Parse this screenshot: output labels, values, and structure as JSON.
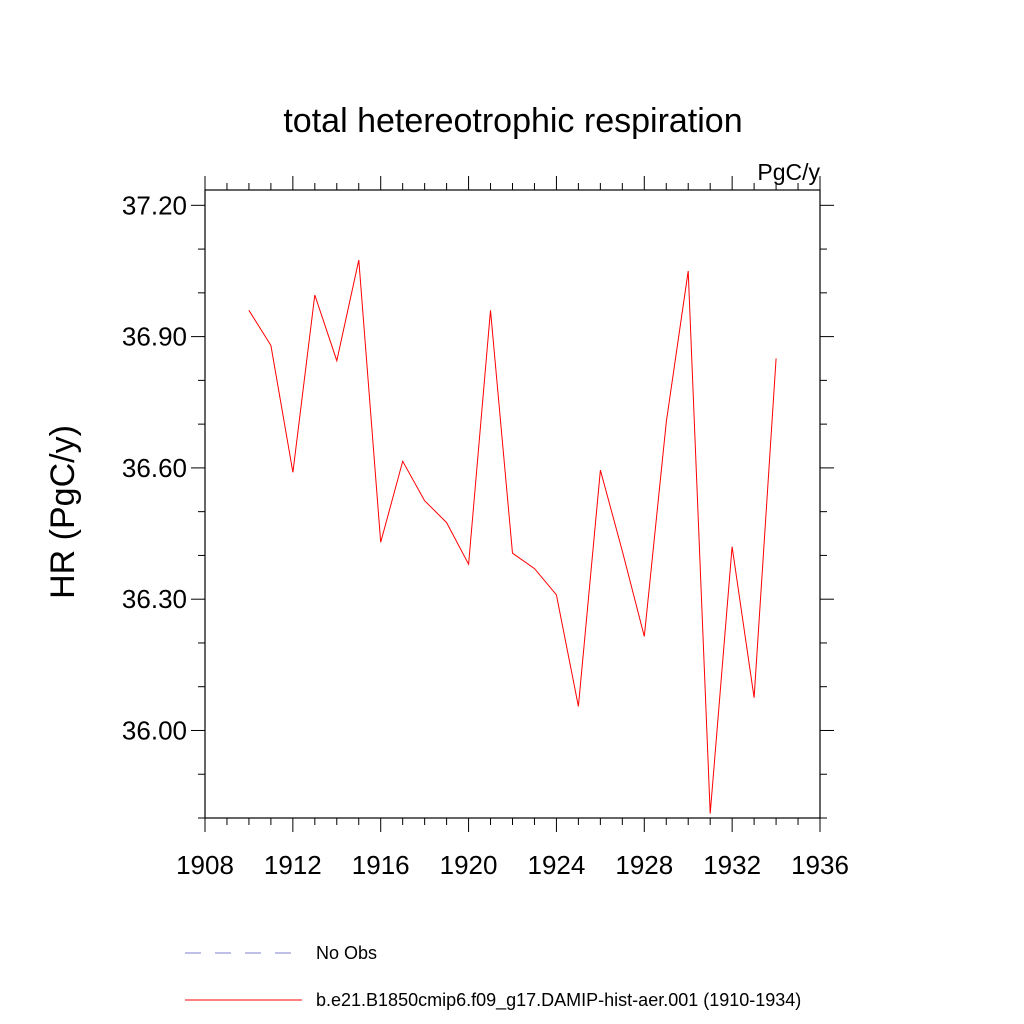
{
  "chart_data": {
    "type": "line",
    "title": "total hetereotrophic respiration",
    "units": "PgC/y",
    "ylabel": "HR  (PgC/y)",
    "xlabel": "",
    "xlim": [
      1908,
      1936
    ],
    "ylim": [
      35.8,
      37.235
    ],
    "xticks": [
      1908,
      1912,
      1916,
      1920,
      1924,
      1928,
      1932,
      1936
    ],
    "xtick_labels": [
      "1908",
      "1912",
      "1916",
      "1920",
      "1924",
      "1928",
      "1932",
      "1936"
    ],
    "yticks": [
      36.0,
      36.3,
      36.6,
      36.9,
      37.2
    ],
    "ytick_labels": [
      "36.00",
      "36.30",
      "36.60",
      "36.90",
      "37.20"
    ],
    "grid": false,
    "legend_position": "bottom",
    "series": [
      {
        "name": "b.e21.B1850cmip6.f09_g17.DAMIP-hist-aer.001 (1910-1934)",
        "color": "#ff0000",
        "style": "solid",
        "x": [
          1910,
          1911,
          1912,
          1913,
          1914,
          1915,
          1916,
          1917,
          1918,
          1919,
          1920,
          1921,
          1922,
          1923,
          1924,
          1925,
          1926,
          1927,
          1928,
          1929,
          1930,
          1931,
          1932,
          1933,
          1934
        ],
        "y": [
          36.96,
          36.88,
          36.59,
          36.995,
          36.845,
          37.075,
          36.43,
          36.615,
          36.525,
          36.475,
          36.38,
          36.96,
          36.405,
          36.37,
          36.31,
          36.055,
          36.595,
          36.41,
          36.215,
          36.705,
          37.05,
          35.81,
          36.42,
          36.075,
          36.85
        ]
      }
    ],
    "legend": [
      {
        "label": "No Obs",
        "color": "#7f7fd0",
        "style": "dashed"
      },
      {
        "label": "b.e21.B1850cmip6.f09_g17.DAMIP-hist-aer.001 (1910-1934)",
        "color": "#ff0000",
        "style": "solid"
      }
    ]
  }
}
